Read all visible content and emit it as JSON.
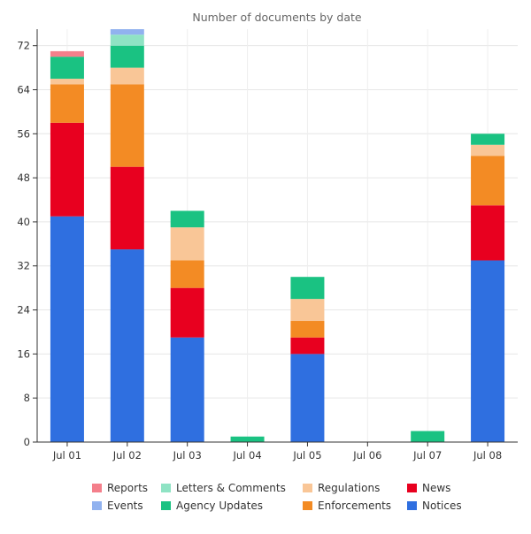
{
  "chart_data": {
    "type": "bar",
    "stacked": true,
    "title": "Number of documents by date",
    "xlabel": "",
    "ylabel": "",
    "ylim": [
      0,
      75
    ],
    "yticks": [
      0,
      8,
      16,
      24,
      32,
      40,
      48,
      56,
      64,
      72
    ],
    "grid": true,
    "legend_position": "bottom",
    "categories": [
      "Jul 01",
      "Jul 02",
      "Jul 03",
      "Jul 04",
      "Jul 05",
      "Jul 06",
      "Jul 07",
      "Jul 08"
    ],
    "series": [
      {
        "name": "Notices",
        "color": "#2f6fe0",
        "values": [
          41,
          35,
          19,
          0,
          16,
          0,
          0,
          33
        ]
      },
      {
        "name": "News",
        "color": "#e8001f",
        "values": [
          17,
          15,
          9,
          0,
          3,
          0,
          0,
          10
        ]
      },
      {
        "name": "Enforcements",
        "color": "#f38b24",
        "values": [
          7,
          15,
          5,
          0,
          3,
          0,
          0,
          9
        ]
      },
      {
        "name": "Regulations",
        "color": "#f9c697",
        "values": [
          1,
          3,
          6,
          0,
          4,
          0,
          0,
          2
        ]
      },
      {
        "name": "Agency Updates",
        "color": "#1ac282",
        "values": [
          4,
          4,
          3,
          1,
          4,
          0,
          2,
          2
        ]
      },
      {
        "name": "Letters & Comments",
        "color": "#8fe3c4",
        "values": [
          0,
          2,
          0,
          0,
          0,
          0,
          0,
          0
        ]
      },
      {
        "name": "Events",
        "color": "#91b2ef",
        "values": [
          0,
          1,
          0,
          0,
          0,
          0,
          0,
          0
        ]
      },
      {
        "name": "Reports",
        "color": "#f47f8b",
        "values": [
          1,
          0,
          0,
          0,
          0,
          0,
          0,
          0
        ]
      }
    ],
    "legend_order": [
      "Reports",
      "Letters & Comments",
      "Regulations",
      "News",
      "Events",
      "Agency Updates",
      "Enforcements",
      "Notices"
    ]
  }
}
